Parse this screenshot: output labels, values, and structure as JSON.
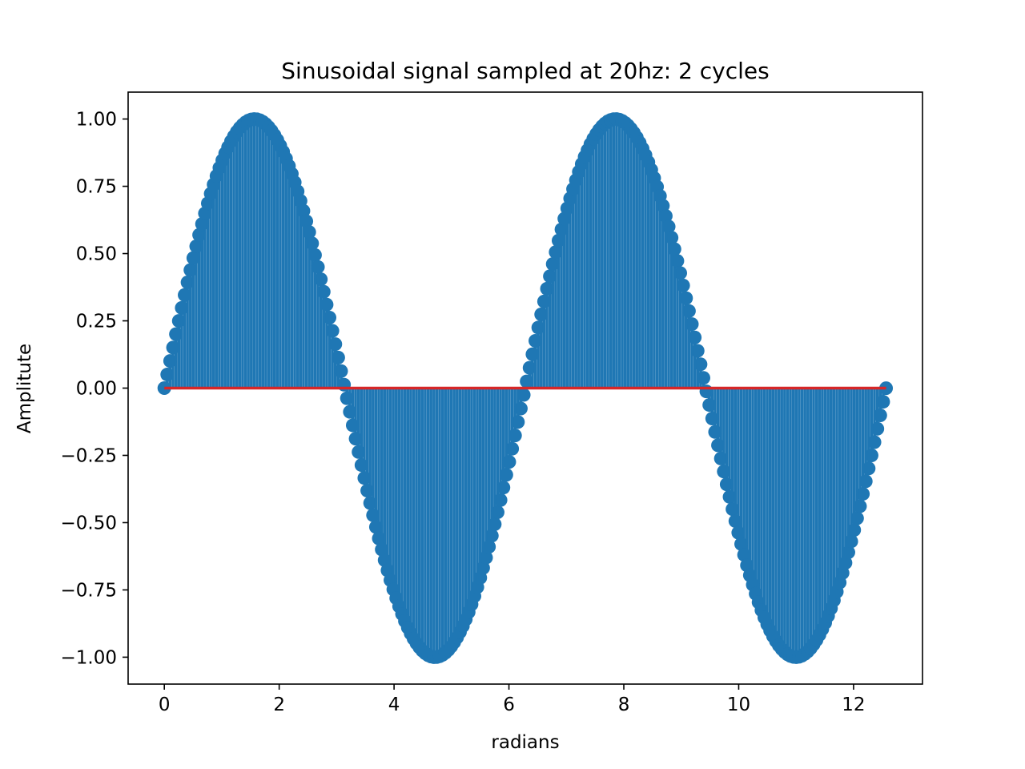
{
  "chart_data": {
    "type": "stem",
    "title": "Sinusoidal signal sampled at 20hz: 2 cycles",
    "xlabel": "radians",
    "ylabel": "Amplitute",
    "xlim": [
      -0.63,
      13.2
    ],
    "ylim": [
      -1.1,
      1.1
    ],
    "xticks": [
      0,
      2,
      4,
      6,
      8,
      10,
      12
    ],
    "xtick_labels": [
      "0",
      "2",
      "4",
      "6",
      "8",
      "10",
      "12"
    ],
    "yticks": [
      1.0,
      0.75,
      0.5,
      0.25,
      0.0,
      -0.25,
      -0.5,
      -0.75,
      -1.0
    ],
    "ytick_labels": [
      "1.00",
      "0.75",
      "0.50",
      "0.25",
      "0.00",
      "−0.25",
      "−0.50",
      "−0.75",
      "−1.00"
    ],
    "series": [
      {
        "function": "sin(x)",
        "x_start": 0,
        "x_end": 12.566,
        "num_samples": 250
      }
    ],
    "baseline_y": 0,
    "grid": false,
    "colors": {
      "markers": "#1f77b4",
      "stems": "#1f77b4",
      "baseline": "#d62728"
    }
  }
}
